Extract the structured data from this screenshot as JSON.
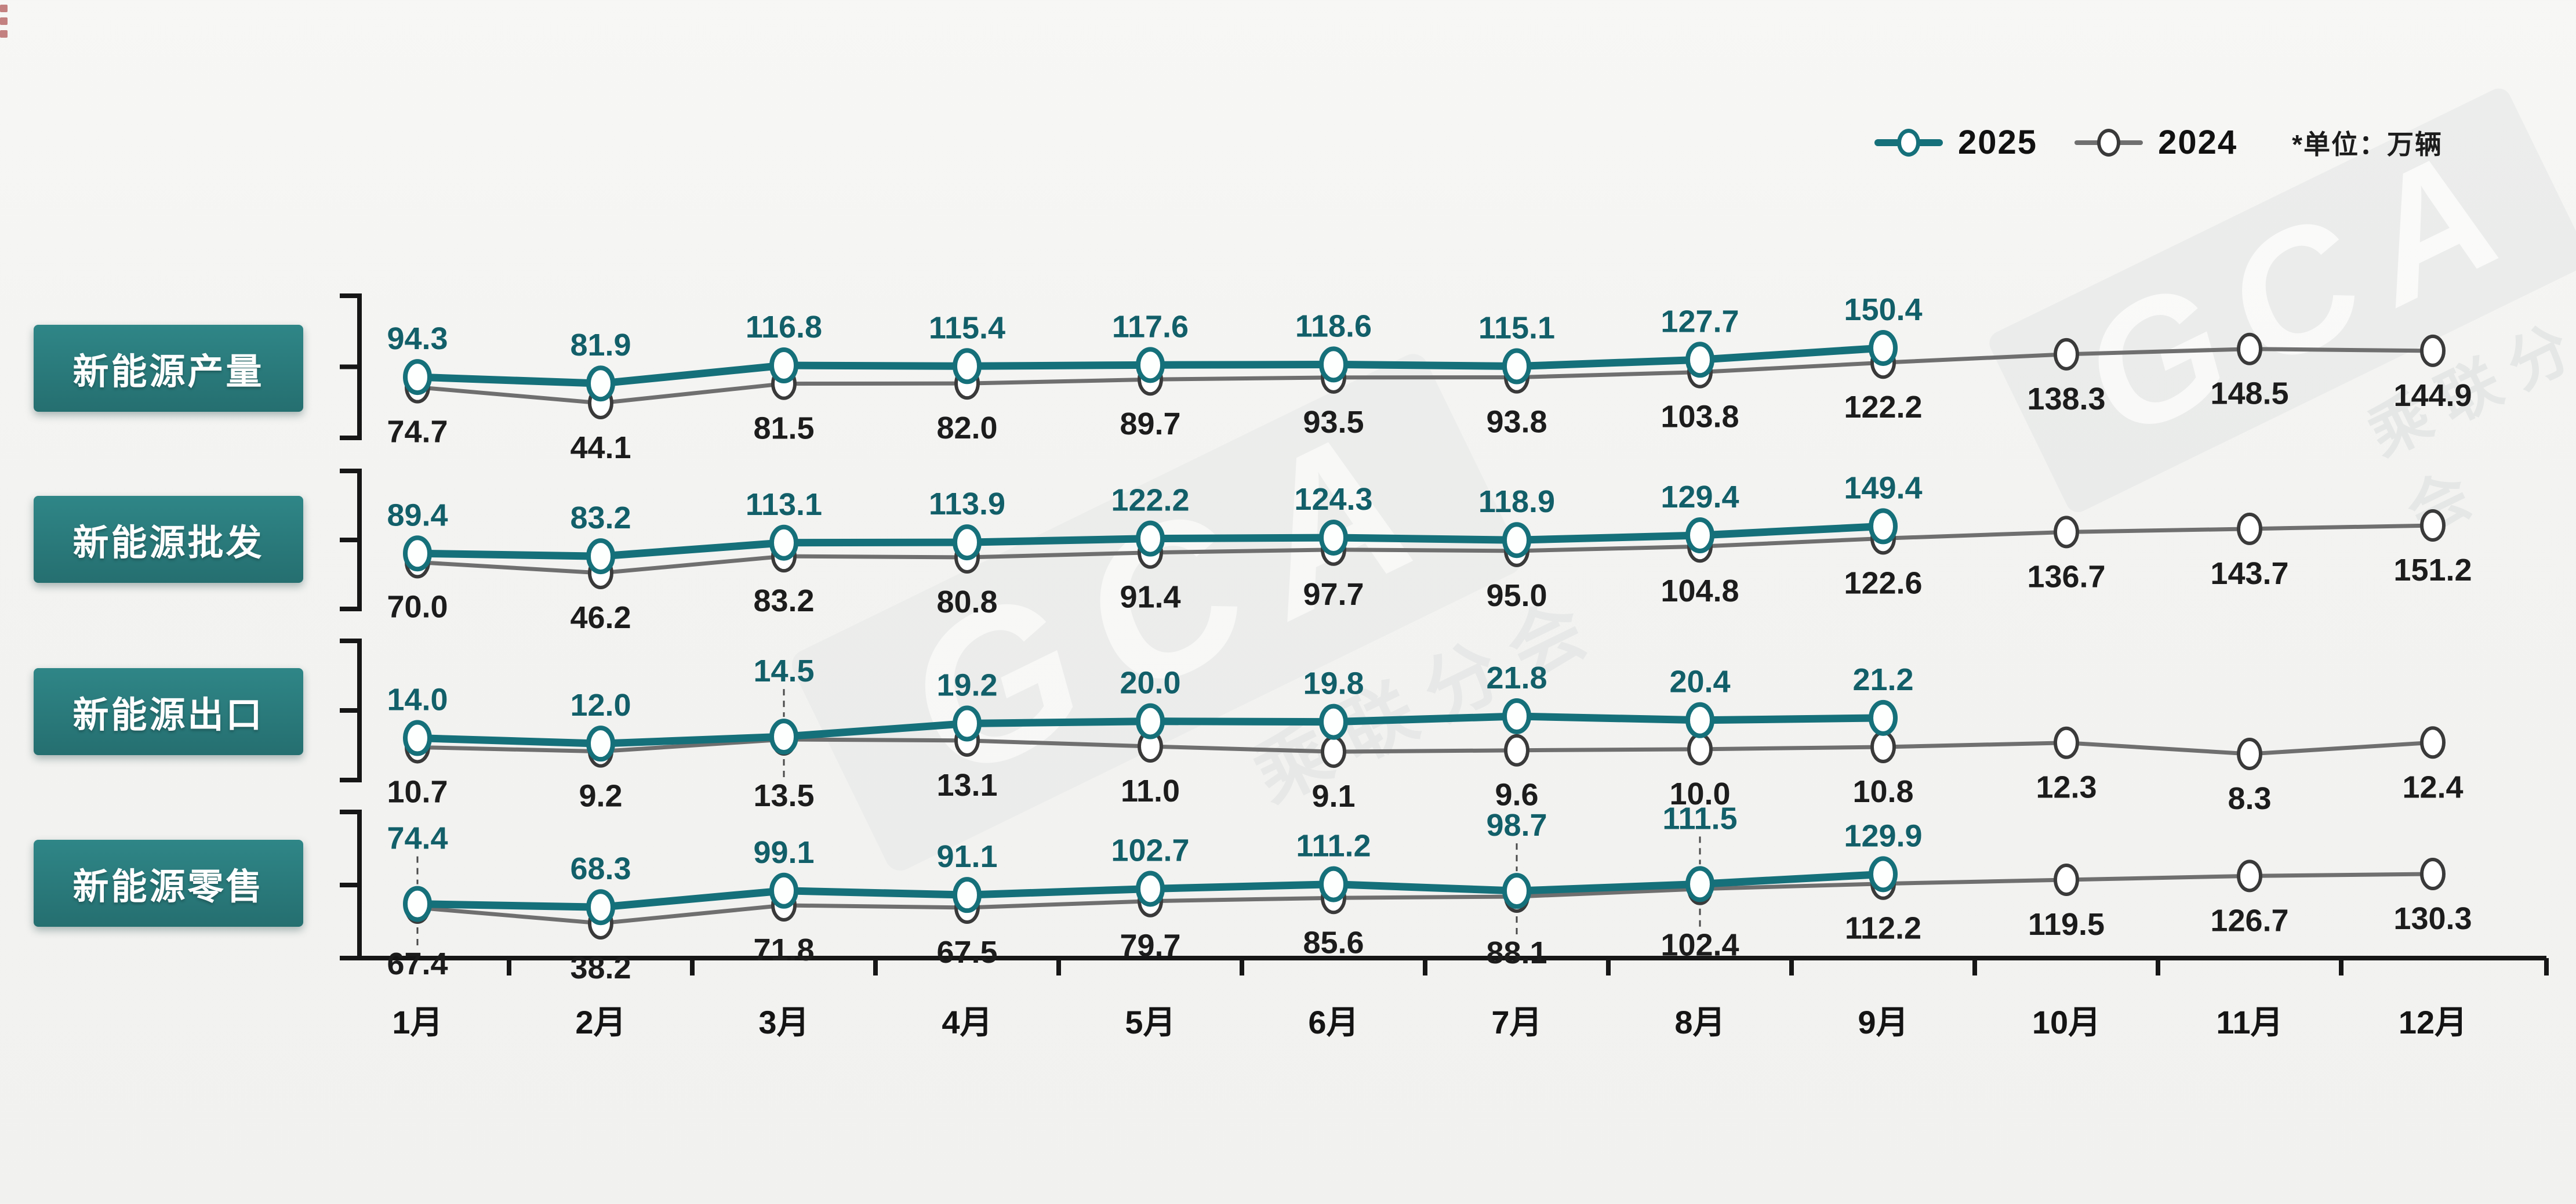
{
  "page": {
    "background": "#f3f3f1"
  },
  "colors": {
    "series_2025": "#15707a",
    "series_2024": "#6f6f6f",
    "marker_2024_border": "#3a3a3a",
    "value_2025": "#125f69",
    "value_2024": "#1c1c1c",
    "axis": "#161616",
    "label_box": "#2b7e7e",
    "label_text": "#ffffff",
    "background": "#f3f3f1"
  },
  "legend": {
    "series": [
      {
        "label": "2025",
        "color": "#15707a"
      },
      {
        "label": "2024",
        "color": "#707070"
      }
    ],
    "unit_note": "*单位：万辆"
  },
  "watermark": {
    "brand": "GCA",
    "org": "乘联分会"
  },
  "x_axis": {
    "months": [
      "1月",
      "2月",
      "3月",
      "4月",
      "5月",
      "6月",
      "7月",
      "8月",
      "9月",
      "10月",
      "11月",
      "12月"
    ]
  },
  "chart_data": [
    {
      "type": "line",
      "title": "新能源产量",
      "categories": [
        "1月",
        "2月",
        "3月",
        "4月",
        "5月",
        "6月",
        "7月",
        "8月",
        "9月",
        "10月",
        "11月",
        "12月"
      ],
      "series": [
        {
          "name": "2025",
          "values": [
            94.3,
            81.9,
            116.8,
            115.4,
            117.6,
            118.6,
            115.1,
            127.7,
            150.4
          ]
        },
        {
          "name": "2024",
          "values": [
            74.7,
            44.1,
            81.5,
            82.0,
            89.7,
            93.5,
            93.8,
            103.8,
            122.2,
            138.3,
            148.5,
            144.9
          ]
        }
      ]
    },
    {
      "type": "line",
      "title": "新能源批发",
      "categories": [
        "1月",
        "2月",
        "3月",
        "4月",
        "5月",
        "6月",
        "7月",
        "8月",
        "9月",
        "10月",
        "11月",
        "12月"
      ],
      "series": [
        {
          "name": "2025",
          "values": [
            89.4,
            83.2,
            113.1,
            113.9,
            122.2,
            124.3,
            118.9,
            129.4,
            149.4
          ]
        },
        {
          "name": "2024",
          "values": [
            70.0,
            46.2,
            83.2,
            80.8,
            91.4,
            97.7,
            95.0,
            104.8,
            122.6,
            136.7,
            143.7,
            151.2
          ]
        }
      ]
    },
    {
      "type": "line",
      "title": "新能源出口",
      "categories": [
        "1月",
        "2月",
        "3月",
        "4月",
        "5月",
        "6月",
        "7月",
        "8月",
        "9月",
        "10月",
        "11月",
        "12月"
      ],
      "series": [
        {
          "name": "2025",
          "values": [
            14.0,
            12.0,
            14.5,
            19.2,
            20.0,
            19.8,
            21.8,
            20.4,
            21.2
          ]
        },
        {
          "name": "2024",
          "values": [
            10.7,
            9.2,
            13.5,
            13.1,
            11.0,
            9.1,
            9.6,
            10.0,
            10.8,
            12.3,
            8.3,
            12.4
          ]
        }
      ]
    },
    {
      "type": "line",
      "title": "新能源零售",
      "categories": [
        "1月",
        "2月",
        "3月",
        "4月",
        "5月",
        "6月",
        "7月",
        "8月",
        "9月",
        "10月",
        "11月",
        "12月"
      ],
      "series": [
        {
          "name": "2025",
          "values": [
            74.4,
            68.3,
            99.1,
            91.1,
            102.7,
            111.2,
            98.7,
            111.5,
            129.9
          ]
        },
        {
          "name": "2024",
          "values": [
            67.4,
            38.2,
            71.8,
            67.5,
            79.7,
            85.6,
            88.1,
            102.4,
            112.2,
            119.5,
            126.7,
            130.3
          ]
        }
      ]
    }
  ]
}
